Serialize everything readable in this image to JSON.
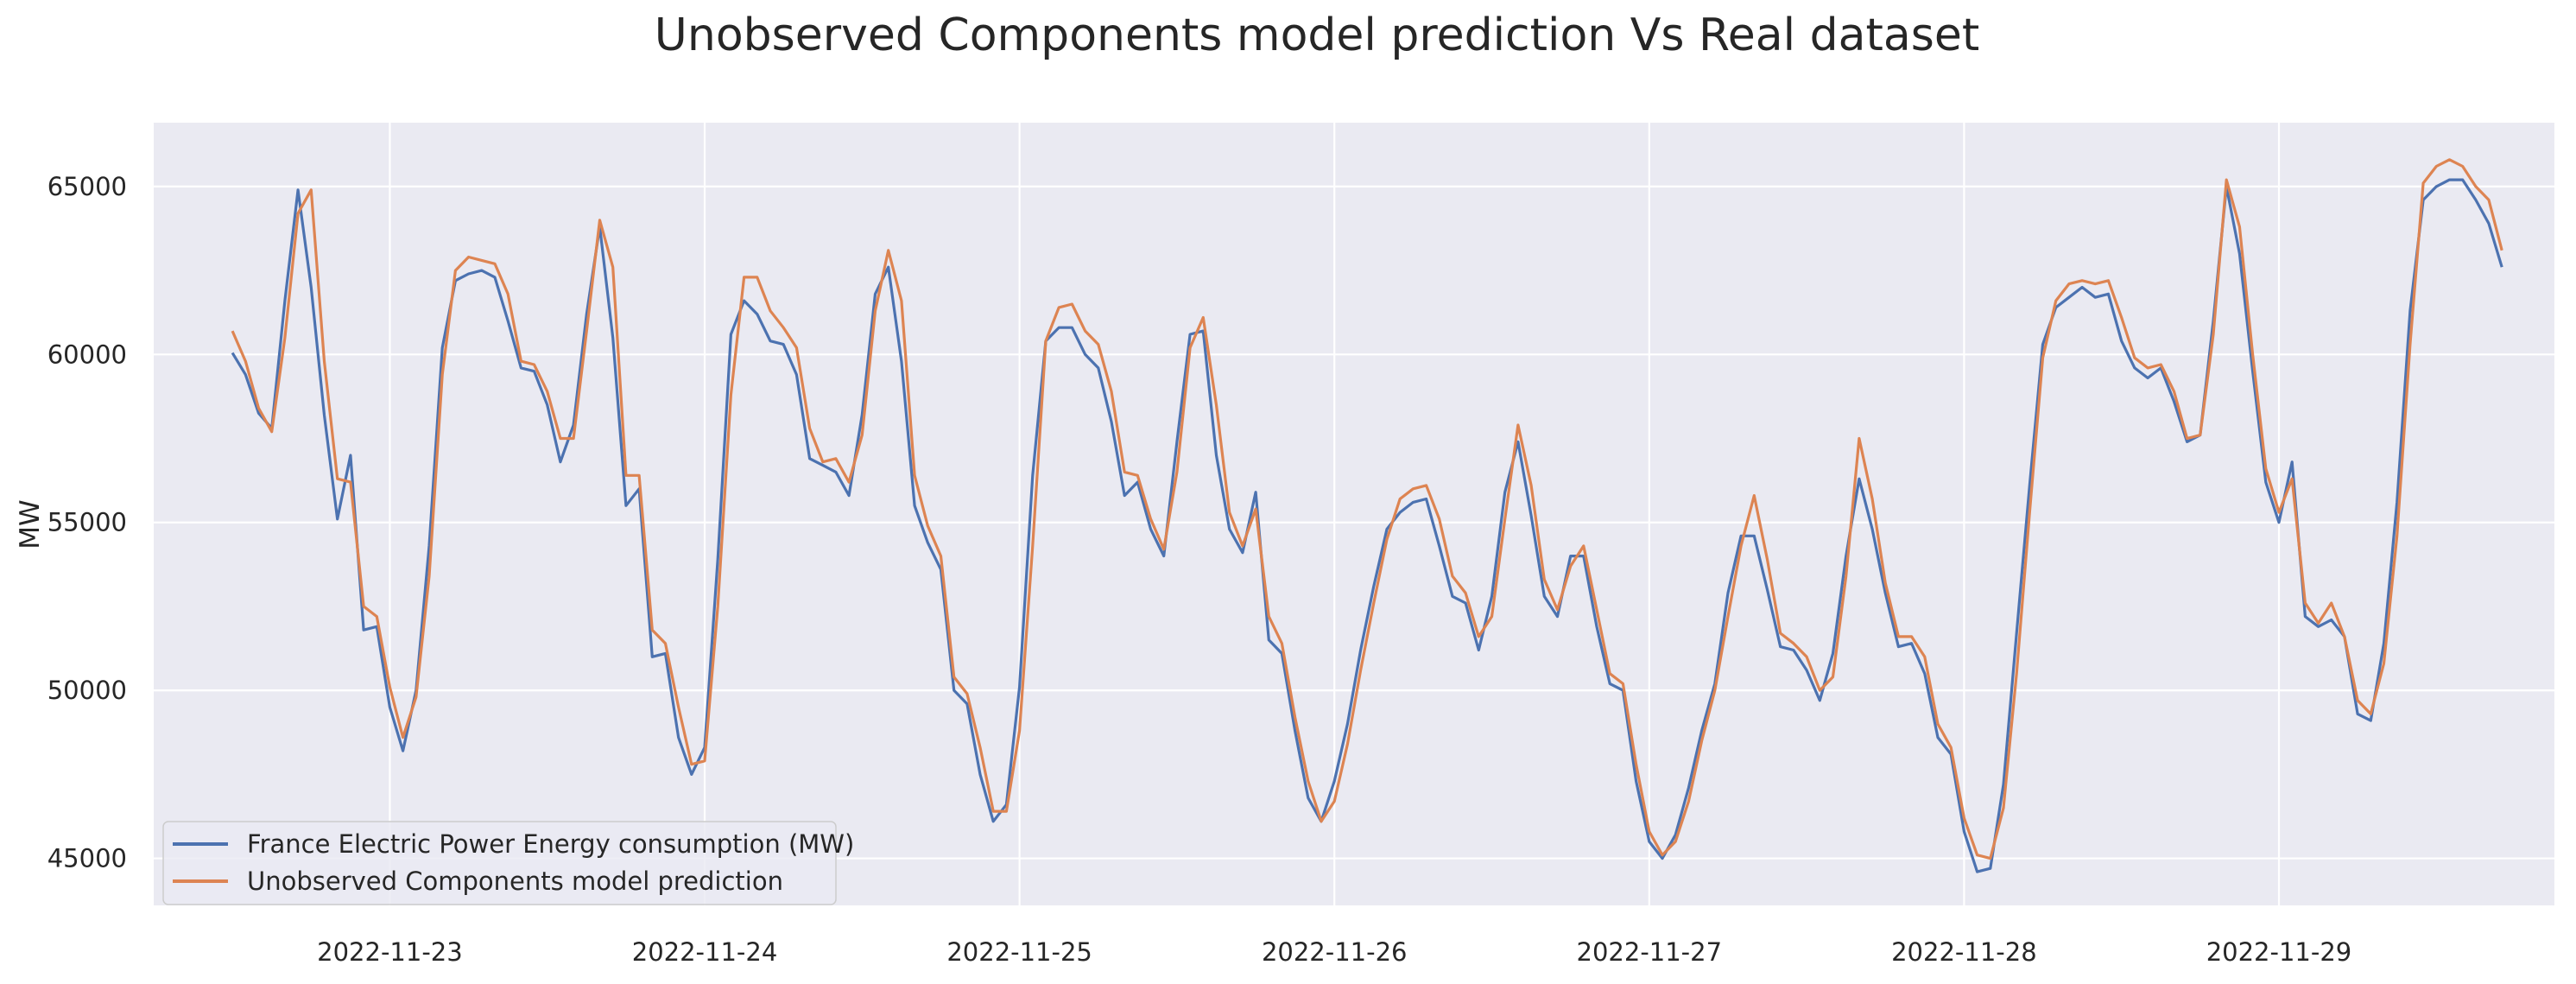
{
  "chart_data": {
    "type": "line",
    "title": "Unobserved Components model prediction Vs Real dataset",
    "xlabel": "",
    "ylabel": "MW",
    "x_start": "2022-11-22 12:00",
    "x_step_hours": 1,
    "xlim": [
      "2022-11-22 06:00",
      "2022-11-29 21:00"
    ],
    "ylim": [
      43600,
      66900
    ],
    "x_ticks": [
      "2022-11-23",
      "2022-11-24",
      "2022-11-25",
      "2022-11-26",
      "2022-11-27",
      "2022-11-28",
      "2022-11-29"
    ],
    "y_ticks": [
      45000,
      50000,
      55000,
      60000,
      65000
    ],
    "grid": true,
    "legend_position": "lower-left",
    "series": [
      {
        "name": "France Electric Power Energy consumption (MW)",
        "color": "#4c72b0",
        "values": [
          60050,
          59400,
          58250,
          57800,
          61600,
          64900,
          62000,
          58200,
          55100,
          57000,
          51800,
          51900,
          49500,
          48200,
          50000,
          54300,
          60200,
          62200,
          62400,
          62500,
          62300,
          61000,
          59600,
          59500,
          58500,
          56800,
          57900,
          61200,
          63800,
          60500,
          55500,
          56000,
          51000,
          51100,
          48600,
          47500,
          48300,
          53900,
          60600,
          61600,
          61200,
          60400,
          60300,
          59400,
          56900,
          56700,
          56500,
          55800,
          58200,
          61800,
          62600,
          59800,
          55500,
          54400,
          53600,
          50000,
          49600,
          47500,
          46100,
          46600,
          50100,
          56400,
          60400,
          60800,
          60800,
          60000,
          59600,
          58000,
          55800,
          56200,
          54800,
          54000,
          57400,
          60600,
          60700,
          57000,
          54800,
          54100,
          55900,
          51500,
          51100,
          48800,
          46800,
          46100,
          47300,
          49000,
          51200,
          53100,
          54800,
          55300,
          55600,
          55700,
          54300,
          52800,
          52600,
          51200,
          52800,
          55900,
          57400,
          55200,
          52800,
          52200,
          54000,
          54000,
          51900,
          50200,
          50000,
          47300,
          45500,
          45000,
          45700,
          47100,
          48800,
          50200,
          52900,
          54600,
          54600,
          53000,
          51300,
          51200,
          50600,
          49700,
          51100,
          54000,
          56300,
          54800,
          52900,
          51300,
          51400,
          50500,
          48600,
          48100,
          45800,
          44600,
          44700,
          47200,
          51700,
          56100,
          60300,
          61400,
          61700,
          62000,
          61700,
          61800,
          60400,
          59600,
          59300,
          59600,
          58600,
          57400,
          57600,
          61000,
          65000,
          63000,
          59500,
          56200,
          55000,
          56800,
          52200,
          51900,
          52100,
          51600,
          49300,
          49100,
          51400,
          55600,
          61300,
          64600,
          65000,
          65200,
          65200,
          64600,
          63900,
          62600
        ]
      },
      {
        "name": "Unobserved Components model prediction",
        "color": "#dd8452",
        "values": [
          60700,
          59800,
          58400,
          57700,
          60500,
          64200,
          64900,
          59800,
          56300,
          56200,
          52500,
          52200,
          50100,
          48600,
          49800,
          53400,
          59400,
          62500,
          62900,
          62800,
          62700,
          61800,
          59800,
          59700,
          58900,
          57500,
          57500,
          60700,
          64000,
          62600,
          56400,
          56400,
          51800,
          51400,
          49500,
          47800,
          47900,
          52500,
          58800,
          62300,
          62300,
          61300,
          60800,
          60200,
          57800,
          56800,
          56900,
          56200,
          57600,
          61300,
          63100,
          61600,
          56400,
          54900,
          54000,
          50400,
          49900,
          48300,
          46400,
          46400,
          48800,
          54300,
          60400,
          61400,
          61500,
          60700,
          60300,
          58900,
          56500,
          56400,
          55100,
          54200,
          56500,
          60200,
          61100,
          58500,
          55300,
          54300,
          55400,
          52200,
          51400,
          49200,
          47300,
          46100,
          46700,
          48400,
          50600,
          52600,
          54500,
          55700,
          56000,
          56100,
          55100,
          53400,
          52900,
          51600,
          52200,
          55100,
          57900,
          56100,
          53300,
          52400,
          53700,
          54300,
          52400,
          50500,
          50200,
          47800,
          45800,
          45100,
          45500,
          46700,
          48500,
          50000,
          52200,
          54300,
          55800,
          53900,
          51700,
          51400,
          51000,
          50000,
          50400,
          53400,
          57500,
          55700,
          53200,
          51600,
          51600,
          51000,
          49000,
          48300,
          46200,
          45100,
          45000,
          46500,
          50500,
          55300,
          59900,
          61600,
          62100,
          62200,
          62100,
          62200,
          61100,
          59900,
          59600,
          59700,
          58900,
          57500,
          57600,
          60600,
          65200,
          63800,
          60000,
          56600,
          55300,
          56300,
          52600,
          52000,
          52600,
          51600,
          49700,
          49300,
          50800,
          54600,
          60300,
          65100,
          65600,
          65800,
          65600,
          65000,
          64600,
          63100
        ]
      }
    ]
  }
}
